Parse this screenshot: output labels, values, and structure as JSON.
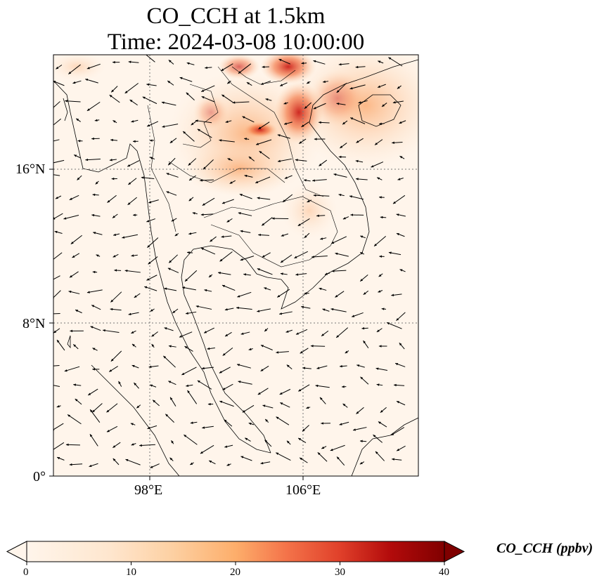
{
  "title_line1": "CO_CCH at 1.5km",
  "title_line2": "Time: 2024-03-08 10:00:00",
  "axes": {
    "lon_ticks": [
      "98°E",
      "106°E"
    ],
    "lat_ticks": [
      "16°N",
      "8°N",
      "0°"
    ]
  },
  "colorbar": {
    "label": "CO_CCH (ppbv)",
    "ticks": [
      "0",
      "10",
      "20",
      "30",
      "40"
    ],
    "range": [
      0,
      40
    ],
    "colormap": [
      "#fff5eb",
      "#fee6ce",
      "#fdd0a2",
      "#fdae6b",
      "#fd8d3c",
      "#f16913",
      "#d94801",
      "#a50f15",
      "#7f2704"
    ],
    "extend": "both"
  },
  "map": {
    "lon_range": [
      93,
      112
    ],
    "lat_range": [
      0,
      22
    ],
    "gridlines": "dotted",
    "wind_vectors": true,
    "coastlines": true,
    "borders": true,
    "colors": {
      "background": "#fff5eb",
      "coast": "#000000",
      "grid": "#777777"
    }
  }
}
